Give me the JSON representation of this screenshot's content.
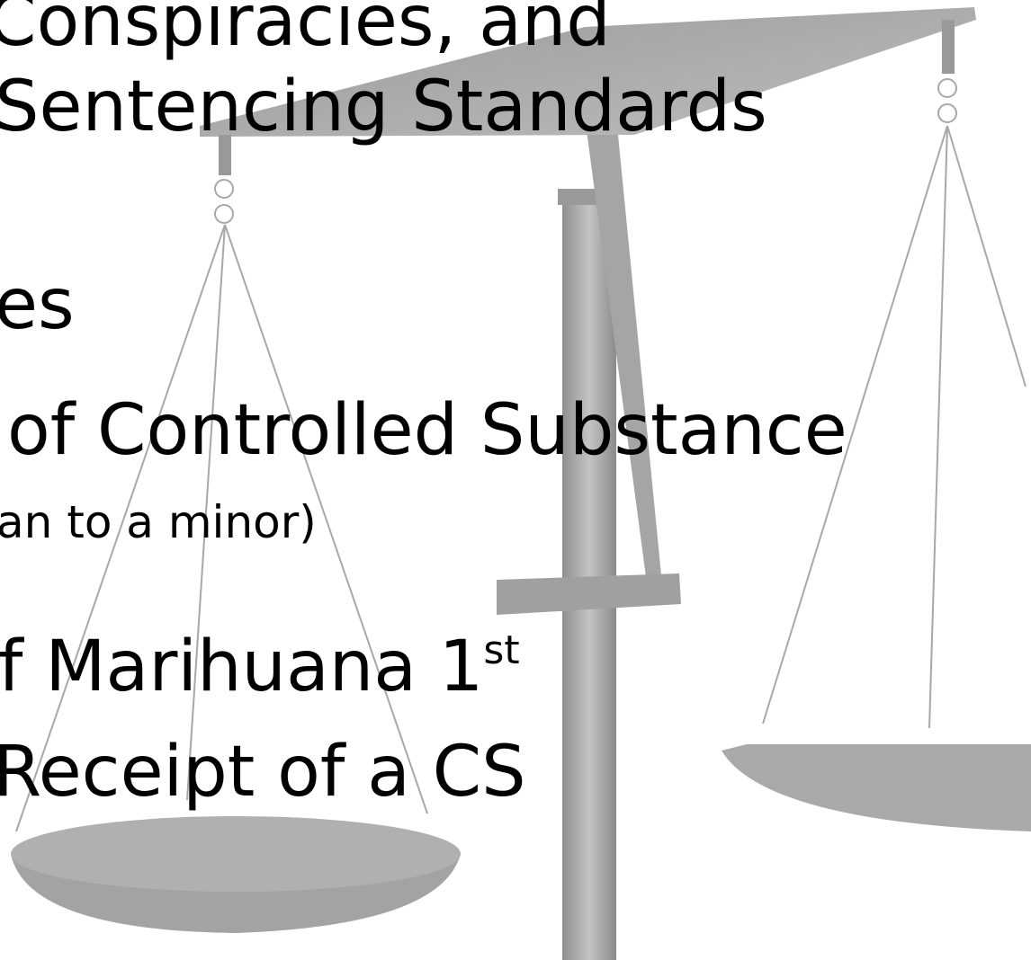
{
  "slide": {
    "lines": [
      "Conspiracies, and",
      "Sentencing Standards",
      "es",
      "of Controlled Substance",
      "an to a minor)",
      "f Marihuana 1",
      "Receipt of a CS"
    ],
    "superscript": "st"
  }
}
